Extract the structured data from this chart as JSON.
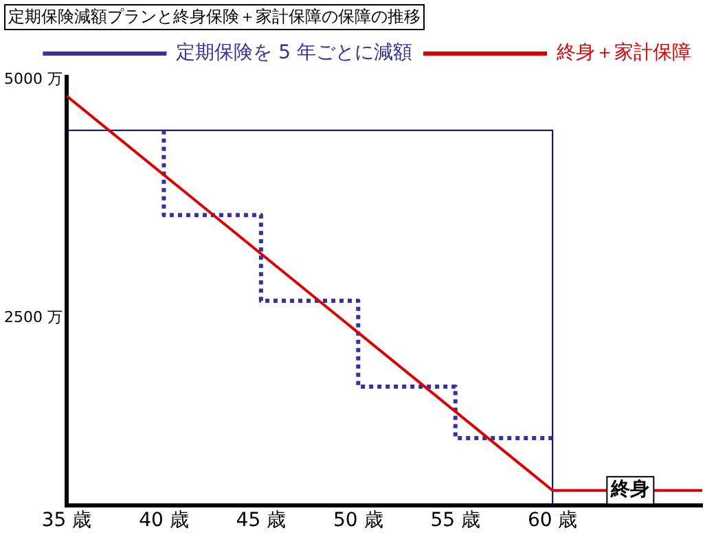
{
  "chart_data": {
    "type": "line",
    "title": "定期保険減額プランと終身保険＋家計保障の保障の推移",
    "xlim": [
      35,
      67.7
    ],
    "xticks": [
      {
        "value": 35,
        "label": "35 歳"
      },
      {
        "value": 40,
        "label": "40 歳"
      },
      {
        "value": 45,
        "label": "45 歳"
      },
      {
        "value": 50,
        "label": "50 歳"
      },
      {
        "value": 55,
        "label": "55 歳"
      },
      {
        "value": 60,
        "label": "60 歳"
      }
    ],
    "ylim": [
      530,
      5030
    ],
    "yticks": [
      {
        "value": 2500,
        "label": "2500 万"
      },
      {
        "value": 5000,
        "label": "5000 万"
      }
    ],
    "grid": false,
    "legend": "top right",
    "marker": "none",
    "series": [
      {
        "color": "#000066",
        "x": [
          35,
          60,
          60
        ],
        "values": [
          4470,
          4470,
          530
        ],
        "line_style": "solid"
      },
      {
        "name": "定期保険を 5 年ごとに減額",
        "color": "#333399",
        "x": [
          40,
          40,
          45,
          45,
          50,
          50,
          55,
          55,
          60
        ],
        "values": [
          4470,
          3580,
          3580,
          2680,
          2680,
          1780,
          1780,
          1240,
          1240
        ],
        "line_style": "dotted"
      },
      {
        "name": "終身＋家計保障",
        "color": "#dd0000",
        "x": [
          35,
          60,
          67.7
        ],
        "values": [
          4830,
          690,
          690
        ],
        "line_style": "solid"
      }
    ],
    "annotations": [
      {
        "text": "終身",
        "x": 64,
        "y": 690
      }
    ]
  }
}
